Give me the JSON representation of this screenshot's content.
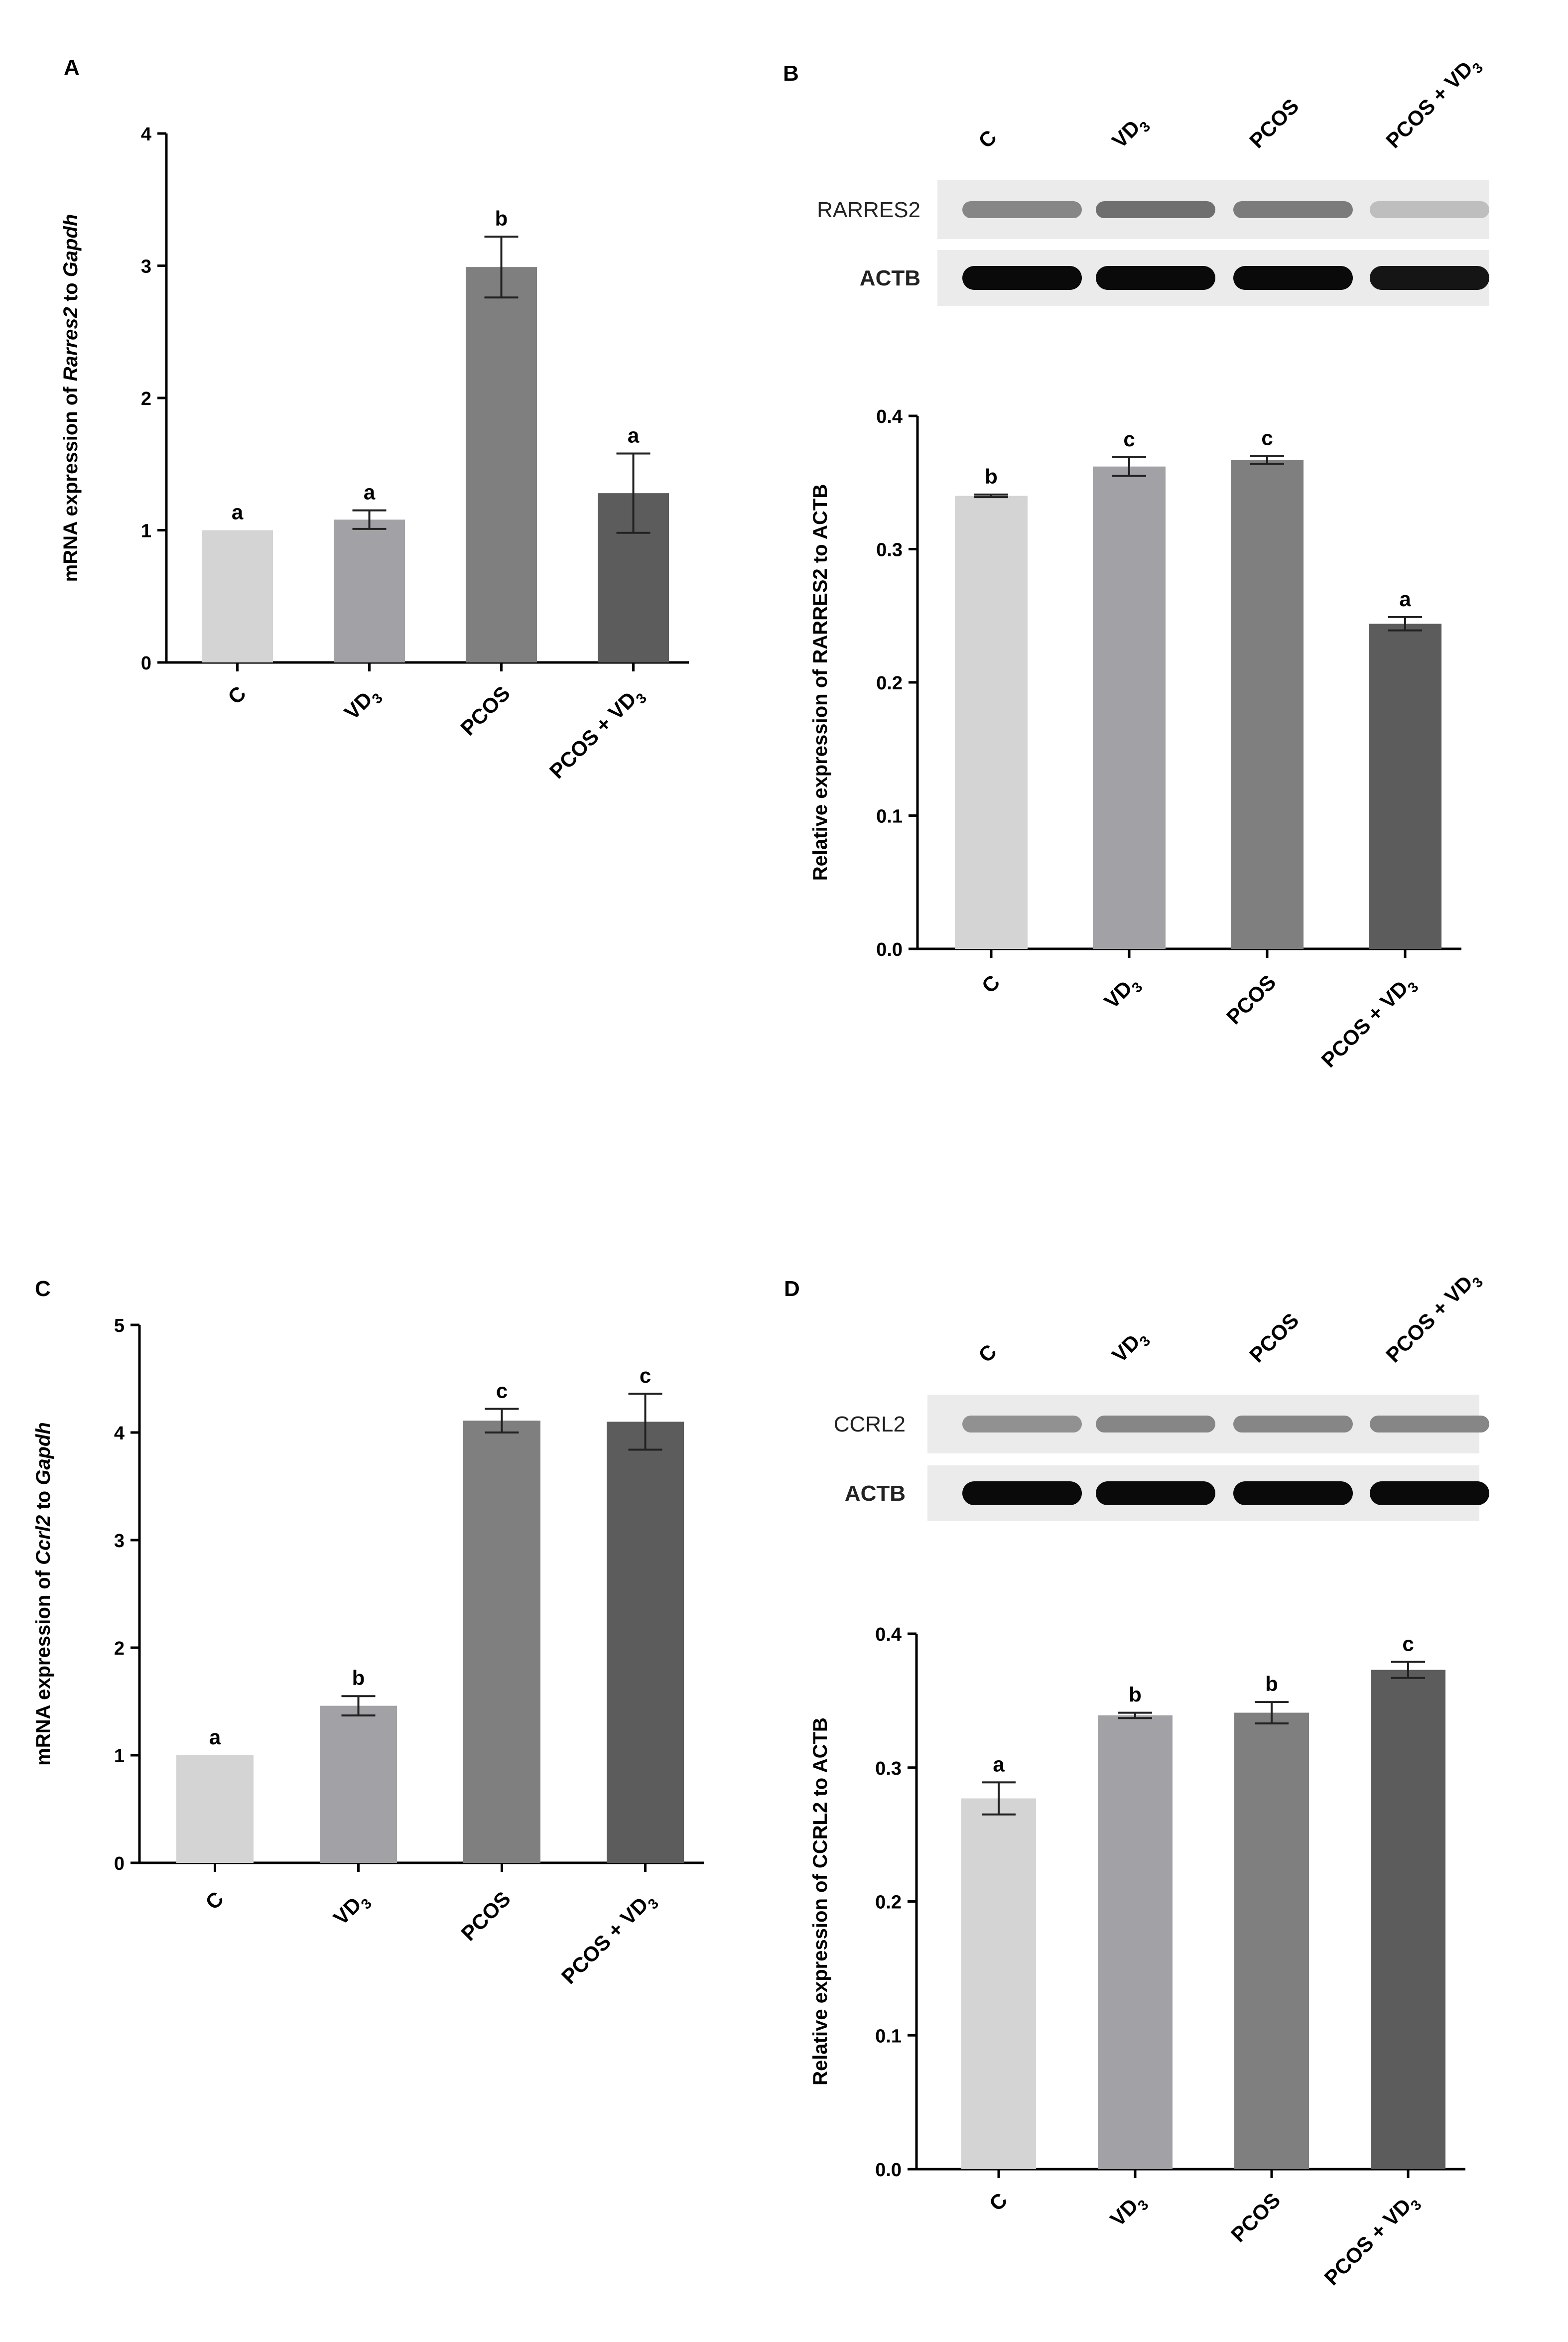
{
  "figure": {
    "panels": [
      "A",
      "B",
      "C",
      "D"
    ]
  },
  "blots": {
    "B": {
      "lanes": [
        "C",
        "VD3",
        "PCOS",
        "PCOS + VD3"
      ],
      "rows": [
        {
          "label": "RARRES2",
          "intensity": [
            0.45,
            0.55,
            0.5,
            0.2
          ]
        },
        {
          "label": "ACTB",
          "intensity": [
            1.0,
            1.0,
            1.0,
            0.95
          ]
        }
      ]
    },
    "D": {
      "lanes": [
        "C",
        "VD3",
        "PCOS",
        "PCOS + VD3"
      ],
      "rows": [
        {
          "label": "CCRL2",
          "intensity": [
            0.4,
            0.45,
            0.45,
            0.45
          ]
        },
        {
          "label": "ACTB",
          "intensity": [
            1.0,
            1.0,
            1.0,
            1.0
          ]
        }
      ]
    }
  },
  "colors": {
    "bars": [
      "#d4d4d4",
      "#a1a1a6",
      "#7f7f7f",
      "#5c5c5c"
    ],
    "axis": "#000000"
  },
  "chart_data": [
    {
      "panel": "A",
      "type": "bar",
      "categories": [
        "C",
        "VD3",
        "PCOS",
        "PCOS + VD3"
      ],
      "values": [
        1.0,
        1.08,
        2.99,
        1.28
      ],
      "errors": [
        0.0,
        0.07,
        0.23,
        0.3
      ],
      "letters": [
        "a",
        "a",
        "b",
        "a"
      ],
      "ylabel": "mRNA expression of Rarres2 to Gapdh",
      "ylabel_parts": [
        "mRNA expression of ",
        "Rarres2",
        " to ",
        "Gapdh"
      ],
      "ylim": [
        0,
        4
      ],
      "yticks": [
        0,
        1,
        2,
        3,
        4
      ],
      "ytick_labels": [
        "0",
        "1",
        "2",
        "3",
        "4"
      ]
    },
    {
      "panel": "B",
      "type": "bar",
      "categories": [
        "C",
        "VD3",
        "PCOS",
        "PCOS + VD3"
      ],
      "values": [
        0.34,
        0.362,
        0.367,
        0.244
      ],
      "errors": [
        0.001,
        0.007,
        0.003,
        0.005
      ],
      "letters": [
        "b",
        "c",
        "c",
        "a"
      ],
      "ylabel": "Relative expression of RARRES2 to ACTB",
      "ylim": [
        0,
        0.4
      ],
      "yticks": [
        0,
        0.1,
        0.2,
        0.3,
        0.4
      ],
      "ytick_labels": [
        "0.0",
        "0.1",
        "0.2",
        "0.3",
        "0.4"
      ]
    },
    {
      "panel": "C",
      "type": "bar",
      "categories": [
        "C",
        "VD3",
        "PCOS",
        "PCOS + VD3"
      ],
      "values": [
        1.0,
        1.46,
        4.11,
        4.1
      ],
      "errors": [
        0.0,
        0.09,
        0.11,
        0.26
      ],
      "letters": [
        "a",
        "b",
        "c",
        "c"
      ],
      "ylabel": "mRNA expression of Ccrl2 to Gapdh",
      "ylabel_parts": [
        "mRNA expression of ",
        "Ccrl2",
        " to ",
        "Gapdh"
      ],
      "ylim": [
        0,
        5
      ],
      "yticks": [
        0,
        1,
        2,
        3,
        4,
        5
      ],
      "ytick_labels": [
        "0",
        "1",
        "2",
        "3",
        "4",
        "5"
      ]
    },
    {
      "panel": "D",
      "type": "bar",
      "categories": [
        "C",
        "VD3",
        "PCOS",
        "PCOS + VD3"
      ],
      "values": [
        0.277,
        0.339,
        0.341,
        0.373
      ],
      "errors": [
        0.012,
        0.002,
        0.008,
        0.006
      ],
      "letters": [
        "a",
        "b",
        "b",
        "c"
      ],
      "ylabel": "Relative expression of CCRL2 to ACTB",
      "ylim": [
        0,
        0.4
      ],
      "yticks": [
        0,
        0.1,
        0.2,
        0.3,
        0.4
      ],
      "ytick_labels": [
        "0.0",
        "0.1",
        "0.2",
        "0.3",
        "0.4"
      ]
    }
  ]
}
